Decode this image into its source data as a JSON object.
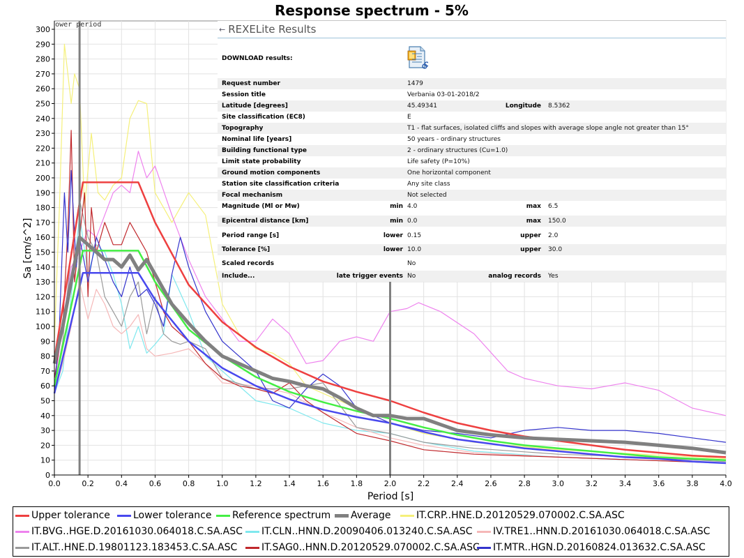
{
  "chart_data": {
    "type": "line",
    "title": "Response spectrum - 5%",
    "xlabel": "Period [s]",
    "ylabel": "Sa [cm/s^2]",
    "xlim": [
      0,
      4.0
    ],
    "ylim": [
      0,
      300
    ],
    "xticks": [
      "0.0",
      "0.2",
      "0.4",
      "0.6",
      "0.8",
      "1.0",
      "1.2",
      "1.4",
      "1.6",
      "1.8",
      "2.0",
      "2.2",
      "2.4",
      "2.6",
      "2.8",
      "3.0",
      "3.2",
      "3.4",
      "3.6",
      "3.8",
      "4.0"
    ],
    "yticks": [
      "0",
      "10",
      "20",
      "30",
      "40",
      "50",
      "60",
      "70",
      "80",
      "90",
      "100",
      "110",
      "120",
      "130",
      "140",
      "150",
      "160",
      "170",
      "180",
      "190",
      "200",
      "210",
      "220",
      "230",
      "240",
      "250",
      "260",
      "270",
      "280",
      "290",
      "300"
    ],
    "markers": [
      {
        "x": 0.15,
        "label": "ower period"
      },
      {
        "x": 2.0,
        "label": ""
      }
    ],
    "legend_position": "bottom",
    "series": [
      {
        "name": "IT.CRP..HNE.D.20120529.070002.C.SA.ASC",
        "color": "#f5f07a",
        "width": 1.2,
        "x": [
          0,
          0.03,
          0.06,
          0.08,
          0.1,
          0.12,
          0.15,
          0.18,
          0.22,
          0.26,
          0.3,
          0.35,
          0.4,
          0.45,
          0.5,
          0.55,
          0.6,
          0.65,
          0.7,
          0.8,
          0.9,
          1.0,
          1.1,
          1.2,
          1.3,
          1.4,
          1.5,
          1.6,
          1.8,
          2.0,
          2.2,
          2.5,
          3.0,
          3.5,
          4.0
        ],
        "y": [
          90,
          180,
          290,
          270,
          250,
          270,
          260,
          180,
          230,
          190,
          185,
          195,
          200,
          240,
          252,
          250,
          190,
          180,
          170,
          190,
          175,
          115,
          95,
          85,
          82,
          75,
          60,
          55,
          45,
          35,
          28,
          22,
          17,
          14,
          11
        ]
      },
      {
        "name": "IT.BVG..HGE.D.20161030.064018.C.SA.ASC",
        "color": "#ee82ee",
        "width": 1.2,
        "x": [
          0,
          0.03,
          0.06,
          0.1,
          0.15,
          0.2,
          0.25,
          0.3,
          0.35,
          0.4,
          0.45,
          0.5,
          0.55,
          0.6,
          0.7,
          0.8,
          0.9,
          1.0,
          1.1,
          1.2,
          1.3,
          1.4,
          1.5,
          1.6,
          1.7,
          1.8,
          1.9,
          2.0,
          2.1,
          2.17,
          2.3,
          2.5,
          2.7,
          2.8,
          3.0,
          3.2,
          3.4,
          3.6,
          3.8,
          4.0
        ],
        "y": [
          60,
          85,
          110,
          140,
          150,
          165,
          160,
          175,
          190,
          195,
          190,
          218,
          200,
          208,
          175,
          145,
          120,
          105,
          90,
          90,
          105,
          95,
          75,
          77,
          90,
          93,
          90,
          110,
          112,
          116,
          110,
          95,
          70,
          65,
          60,
          58,
          62,
          57,
          45,
          40
        ]
      },
      {
        "name": "IT.CLN..HNN.D.20090406.013240.C.SA.ASC",
        "color": "#7fe8ee",
        "width": 1.2,
        "x": [
          0,
          0.05,
          0.1,
          0.15,
          0.2,
          0.25,
          0.3,
          0.35,
          0.4,
          0.45,
          0.5,
          0.55,
          0.6,
          0.65,
          0.7,
          0.8,
          0.9,
          1.0,
          1.1,
          1.2,
          1.4,
          1.6,
          1.8,
          2.0,
          2.2,
          2.5,
          3.0,
          3.5,
          4.0
        ],
        "y": [
          55,
          70,
          120,
          175,
          135,
          155,
          150,
          135,
          115,
          85,
          100,
          82,
          88,
          95,
          135,
          110,
          80,
          70,
          60,
          50,
          45,
          35,
          30,
          28,
          22,
          16,
          12,
          10,
          8
        ]
      },
      {
        "name": "IV.TRE1..HNN.D.20161030.064018.C.SA.ASC",
        "color": "#f5b8b8",
        "width": 1.2,
        "x": [
          0,
          0.05,
          0.1,
          0.15,
          0.2,
          0.25,
          0.3,
          0.35,
          0.4,
          0.45,
          0.5,
          0.55,
          0.6,
          0.7,
          0.8,
          0.9,
          1.0,
          1.2,
          1.4,
          1.6,
          1.8,
          2.0,
          2.2,
          2.5,
          3.0,
          3.5,
          4.0
        ],
        "y": [
          55,
          75,
          100,
          130,
          105,
          125,
          115,
          100,
          95,
          100,
          108,
          85,
          80,
          82,
          85,
          75,
          62,
          60,
          55,
          42,
          32,
          25,
          20,
          15,
          12,
          10,
          8
        ]
      },
      {
        "name": "IT.ALT..HNE.D.19801123.183453.C.SA.ASC",
        "color": "#9a9a9a",
        "width": 1.2,
        "x": [
          0,
          0.05,
          0.1,
          0.15,
          0.2,
          0.25,
          0.3,
          0.35,
          0.4,
          0.45,
          0.5,
          0.55,
          0.6,
          0.65,
          0.7,
          0.75,
          0.8,
          0.9,
          1.0,
          1.2,
          1.4,
          1.6,
          1.8,
          2.0,
          2.2,
          2.5,
          3.0,
          3.5,
          4.0
        ],
        "y": [
          60,
          90,
          150,
          185,
          160,
          150,
          120,
          110,
          100,
          120,
          130,
          95,
          120,
          95,
          90,
          88,
          90,
          85,
          65,
          58,
          58,
          62,
          32,
          28,
          22,
          18,
          14,
          12,
          9
        ]
      },
      {
        "name": "IT.SAG0..HNN.D.20120529.070002.C.SA.ASC",
        "color": "#c0282c",
        "width": 1.2,
        "x": [
          0,
          0.05,
          0.08,
          0.1,
          0.12,
          0.15,
          0.18,
          0.2,
          0.22,
          0.25,
          0.3,
          0.35,
          0.4,
          0.45,
          0.5,
          0.55,
          0.6,
          0.65,
          0.7,
          0.8,
          0.9,
          1.0,
          1.1,
          1.2,
          1.3,
          1.4,
          1.5,
          1.6,
          1.7,
          1.8,
          2.0,
          2.2,
          2.4,
          2.5,
          3.0,
          3.5,
          4.0
        ],
        "y": [
          65,
          100,
          165,
          232,
          130,
          160,
          190,
          120,
          180,
          150,
          170,
          155,
          155,
          170,
          160,
          150,
          130,
          110,
          100,
          90,
          75,
          65,
          60,
          58,
          55,
          62,
          50,
          42,
          35,
          28,
          23,
          17,
          15,
          14,
          12,
          10,
          8
        ]
      },
      {
        "name": "IT.MTR..HGN.D.20160824.013632.C.SA.ASC",
        "color": "#3333cc",
        "width": 1.2,
        "x": [
          0,
          0.03,
          0.06,
          0.08,
          0.1,
          0.13,
          0.15,
          0.2,
          0.25,
          0.3,
          0.35,
          0.4,
          0.45,
          0.5,
          0.55,
          0.6,
          0.65,
          0.7,
          0.75,
          0.8,
          0.9,
          1.0,
          1.1,
          1.2,
          1.3,
          1.4,
          1.5,
          1.6,
          1.7,
          1.8,
          2.0,
          2.2,
          2.4,
          2.6,
          2.8,
          3.0,
          3.2,
          3.4,
          3.6,
          3.8,
          4.0
        ],
        "y": [
          55,
          100,
          190,
          150,
          205,
          140,
          160,
          130,
          160,
          145,
          130,
          120,
          140,
          120,
          125,
          115,
          100,
          135,
          160,
          140,
          110,
          90,
          80,
          70,
          50,
          45,
          58,
          68,
          60,
          45,
          35,
          30,
          28,
          25,
          30,
          32,
          30,
          30,
          28,
          25,
          22
        ]
      },
      {
        "name": "Upper tolerance",
        "color": "#ee4040",
        "width": 2.5,
        "x": [
          0,
          0.17,
          0.5,
          0.6,
          0.8,
          1.0,
          1.2,
          1.4,
          1.6,
          1.8,
          2.0,
          2.2,
          2.4,
          2.6,
          2.8,
          3.0,
          3.2,
          3.4,
          3.6,
          3.8,
          4.0
        ],
        "y": [
          78,
          197,
          197,
          170,
          128,
          103,
          86,
          73,
          63,
          56,
          50,
          42,
          35,
          30,
          26,
          23,
          20,
          17,
          15,
          13,
          12
        ]
      },
      {
        "name": "Lower tolerance",
        "color": "#4848ee",
        "width": 2.5,
        "x": [
          0,
          0.17,
          0.5,
          0.6,
          0.8,
          1.0,
          1.2,
          1.4,
          1.6,
          1.8,
          2.0,
          2.2,
          2.4,
          2.6,
          2.8,
          3.0,
          3.2,
          3.4,
          3.6,
          3.8,
          4.0
        ],
        "y": [
          55,
          136,
          136,
          118,
          90,
          72,
          60,
          51,
          44,
          39,
          35,
          29,
          24,
          21,
          18,
          16,
          14,
          12,
          11,
          9,
          8
        ]
      },
      {
        "name": "Reference spectrum",
        "color": "#44ee44",
        "width": 2.5,
        "x": [
          0,
          0.17,
          0.5,
          0.6,
          0.8,
          1.0,
          1.2,
          1.4,
          1.6,
          1.8,
          2.0,
          2.2,
          2.4,
          2.6,
          2.8,
          3.0,
          3.2,
          3.4,
          3.6,
          3.8,
          4.0
        ],
        "y": [
          60,
          151,
          151,
          130,
          98,
          80,
          66,
          56,
          49,
          43,
          38,
          32,
          27,
          23,
          20,
          18,
          16,
          14,
          12,
          11,
          10
        ]
      },
      {
        "name": "Average",
        "color": "#808080",
        "width": 5,
        "x": [
          0,
          0.05,
          0.1,
          0.15,
          0.2,
          0.25,
          0.3,
          0.35,
          0.4,
          0.45,
          0.5,
          0.55,
          0.6,
          0.7,
          0.8,
          0.9,
          1.0,
          1.1,
          1.2,
          1.3,
          1.4,
          1.5,
          1.6,
          1.7,
          1.8,
          1.9,
          2.0,
          2.1,
          2.2,
          2.4,
          2.6,
          2.8,
          3.0,
          3.2,
          3.4,
          3.6,
          3.8,
          4.0
        ],
        "y": [
          75,
          100,
          130,
          160,
          155,
          150,
          145,
          145,
          140,
          148,
          138,
          145,
          135,
          115,
          102,
          90,
          80,
          75,
          70,
          65,
          63,
          60,
          58,
          52,
          45,
          40,
          40,
          38,
          38,
          30,
          27,
          25,
          24,
          23,
          22,
          20,
          18,
          15
        ]
      }
    ]
  },
  "panel": {
    "title": "REXELite Results",
    "download_label": "DOWNLOAD results:",
    "rows": [
      {
        "label": "Request number",
        "value": "1479"
      },
      {
        "label": "Session title",
        "value": "Verbania 03-01-2018/2"
      },
      {
        "label": "Latitude [degrees]",
        "value": "45.49341",
        "label2": "Longitude",
        "value2": "8.5362"
      },
      {
        "label": "Site classification (EC8)",
        "value": "E"
      },
      {
        "label": "Topography",
        "value": "T1 - flat surfaces, isolated cliffs and slopes with average slope angle not greater than 15°"
      },
      {
        "label": "Nominal life [years]",
        "value": "50 years - ordinary structures"
      },
      {
        "label": "Building functional type",
        "value": "2 - ordinary structures (Cu=1.0)"
      },
      {
        "label": "Limit state probability",
        "value": "Life safety (P=10%)"
      },
      {
        "label": "Ground motion components",
        "value": "One horizontal component"
      },
      {
        "label": "Station site classification criteria",
        "value": "Any site class"
      },
      {
        "label": "Focal mechanism",
        "value": "Not selected"
      },
      {
        "label": "Magnitude (Ml or Mw)",
        "sub1": "min",
        "value": "4.0",
        "sub2": "max",
        "value2": "6.5"
      },
      {
        "label": "Epicentral distance [km]",
        "sub1": "min",
        "value": "0.0",
        "sub2": "max",
        "value2": "150.0"
      },
      {
        "label": "Period range [s]",
        "sub1": "lower",
        "value": "0.15",
        "sub2": "upper",
        "value2": "2.0"
      },
      {
        "label": "Tolerance [%]",
        "sub1": "lower",
        "value": "10.0",
        "sub2": "upper",
        "value2": "30.0"
      },
      {
        "label": "Scaled records",
        "value": "No"
      },
      {
        "label": "Include...",
        "sub1": "late trigger events",
        "value": "No",
        "sub2": "analog records",
        "value2": "Yes"
      }
    ]
  }
}
